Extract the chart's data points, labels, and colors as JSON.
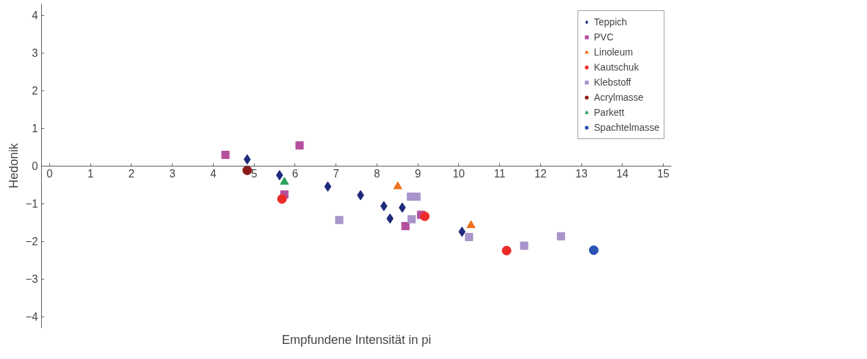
{
  "chart_data": {
    "type": "scatter",
    "xlabel": "Empfundene Intensität in pi",
    "ylabel": "Hedonik",
    "xlim": [
      -0.2,
      15.2
    ],
    "ylim": [
      -4.3,
      4.3
    ],
    "xticks": [
      0,
      1,
      2,
      3,
      4,
      5,
      6,
      7,
      8,
      9,
      10,
      11,
      12,
      13,
      14,
      15
    ],
    "yticks": [
      -4,
      -3,
      -2,
      -1,
      0,
      1,
      2,
      3,
      4
    ],
    "grid": false,
    "legend": "top right",
    "series": [
      {
        "name": "Teppich",
        "color": "#1f2a7a",
        "marker": "diamond",
        "x": [
          4.83,
          5.62,
          6.8,
          7.6,
          8.17,
          8.32,
          8.62,
          10.08
        ],
        "values": [
          0.17,
          -0.25,
          -0.55,
          -0.78,
          -1.07,
          -1.4,
          -1.11,
          -1.75
        ]
      },
      {
        "name": "PVC",
        "color": "#b4509e",
        "marker": "square",
        "x": [
          4.3,
          6.11,
          5.74,
          8.7,
          9.08
        ],
        "values": [
          0.29,
          0.54,
          -0.76,
          -1.6,
          -1.3
        ]
      },
      {
        "name": "Linoleum",
        "color": "#f07020",
        "marker": "triangle",
        "x": [
          8.51,
          10.3
        ],
        "values": [
          -0.55,
          -1.58
        ]
      },
      {
        "name": "Kautschuk",
        "color": "#ee2a2a",
        "marker": "circle",
        "x": [
          5.68,
          9.17,
          11.17
        ],
        "values": [
          -0.88,
          -1.34,
          -2.25
        ]
      },
      {
        "name": "Klebstoff",
        "color": "#a995cc",
        "marker": "square",
        "x": [
          7.08,
          8.83,
          8.97,
          8.85,
          10.25,
          11.6,
          12.5
        ],
        "values": [
          -1.44,
          -0.82,
          -0.82,
          -1.42,
          -1.89,
          -2.12,
          -1.87
        ]
      },
      {
        "name": "Acrylmasse",
        "color": "#8b1a1a",
        "marker": "circle",
        "x": [
          4.83
        ],
        "values": [
          -0.12
        ]
      },
      {
        "name": "Parkett",
        "color": "#2aa05a",
        "marker": "triangle",
        "x": [
          5.74
        ],
        "values": [
          -0.43
        ]
      },
      {
        "name": "Spachtelmasse",
        "color": "#2a52b4",
        "marker": "circle",
        "x": [
          13.3
        ],
        "values": [
          -2.24
        ]
      }
    ]
  }
}
